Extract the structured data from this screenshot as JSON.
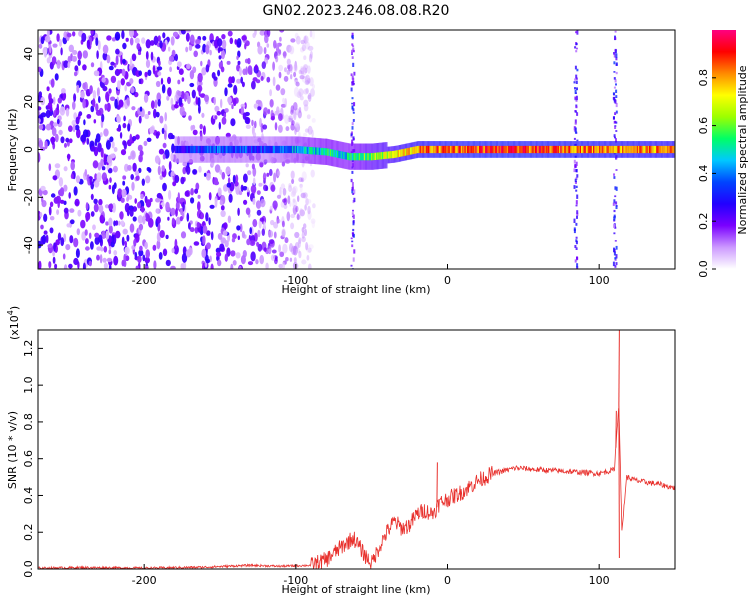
{
  "title": "GN02.2023.246.08.08.R20",
  "chart_data": [
    {
      "type": "heatmap",
      "xlabel": "Height of straight line (km)",
      "ylabel": "Frequency (Hz)",
      "xlim": [
        -270,
        150
      ],
      "ylim": [
        -50,
        50
      ],
      "xticks": [
        -200,
        -100,
        0,
        100
      ],
      "yticks": [
        -40,
        -20,
        0,
        20,
        40
      ],
      "colorbar": {
        "label": "Normalized spectral amplitude",
        "range": [
          0,
          1
        ],
        "ticks": [
          "0.0",
          "0.2",
          "0.4",
          "0.6",
          "0.8"
        ],
        "colors": [
          "#ffffff",
          "#cc99ff",
          "#7a00ff",
          "#2200ff",
          "#0044ff",
          "#00c8ff",
          "#00ff66",
          "#9cff00",
          "#ffff00",
          "#ff8a00",
          "#ff0000",
          "#ff0080"
        ]
      },
      "noise_region_x": [
        -270,
        -100
      ],
      "trace": [
        {
          "x": -180,
          "f": 0,
          "amp": 0.28
        },
        {
          "x": -150,
          "f": 0,
          "amp": 0.35
        },
        {
          "x": -120,
          "f": 0,
          "amp": 0.3
        },
        {
          "x": -100,
          "f": 0,
          "amp": 0.42
        },
        {
          "x": -80,
          "f": -1,
          "amp": 0.52
        },
        {
          "x": -65,
          "f": -3,
          "amp": 0.48
        },
        {
          "x": -50,
          "f": -3,
          "amp": 0.62
        },
        {
          "x": -35,
          "f": -2,
          "amp": 0.7
        },
        {
          "x": -20,
          "f": 0,
          "amp": 0.8
        },
        {
          "x": 0,
          "f": 0,
          "amp": 0.85
        },
        {
          "x": 30,
          "f": 0,
          "amp": 0.88
        },
        {
          "x": 60,
          "f": 0,
          "amp": 0.86
        },
        {
          "x": 85,
          "f": 0,
          "amp": 0.84
        },
        {
          "x": 110,
          "f": 0,
          "amp": 0.82
        },
        {
          "x": 150,
          "f": 0,
          "amp": 0.8
        }
      ],
      "spikes_x": [
        -63,
        84,
        110
      ]
    },
    {
      "type": "line",
      "xlabel": "Height of straight line (km)",
      "ylabel": "SNR (10 * v/v)",
      "yscale_label": "(x10",
      "yscale_exp": "4",
      "yscale_close": ")",
      "xlim": [
        -270,
        150
      ],
      "ylim": [
        0,
        1.3
      ],
      "xticks": [
        -200,
        -100,
        0,
        100
      ],
      "yticks": [
        "0.0",
        "0.2",
        "0.4",
        "0.6",
        "0.8",
        "1.0",
        "1.2"
      ],
      "series": [
        {
          "color": "#e8302c",
          "x": [
            -270,
            -240,
            -200,
            -160,
            -130,
            -110,
            -90,
            -80,
            -70,
            -62,
            -55,
            -50,
            -45,
            -40,
            -35,
            -30,
            -25,
            -20,
            -15,
            -10,
            -5,
            0,
            10,
            20,
            30,
            45,
            60,
            80,
            100,
            110,
            113,
            115,
            118,
            125,
            140,
            150
          ],
          "y": [
            0.005,
            0.008,
            0.005,
            0.01,
            0.02,
            0.015,
            0.02,
            0.05,
            0.12,
            0.17,
            0.08,
            0.03,
            0.12,
            0.2,
            0.26,
            0.22,
            0.24,
            0.3,
            0.32,
            0.3,
            0.36,
            0.38,
            0.42,
            0.48,
            0.52,
            0.55,
            0.54,
            0.53,
            0.52,
            0.54,
            0.9,
            0.2,
            0.5,
            0.48,
            0.46,
            0.44
          ]
        }
      ],
      "spikes": [
        {
          "x": -7,
          "y": 0.58
        },
        {
          "x": 111,
          "y": 0.86
        },
        {
          "x": 113,
          "y": 1.3
        },
        {
          "x": 113,
          "y": 0.06
        }
      ]
    }
  ]
}
